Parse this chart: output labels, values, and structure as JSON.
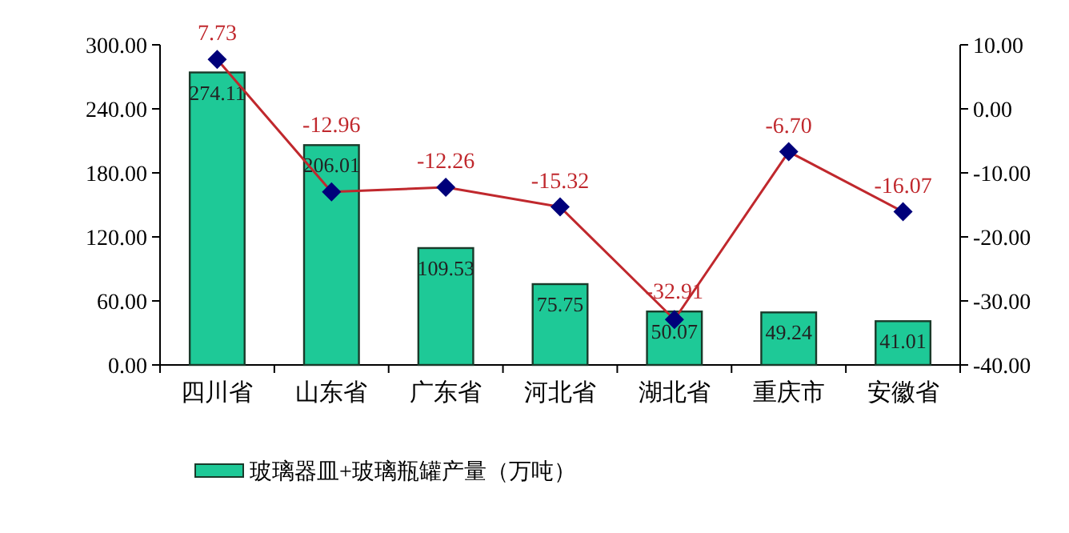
{
  "chart_data": {
    "type": "bar",
    "categories": [
      "四川省",
      "山东省",
      "广东省",
      "河北省",
      "湖北省",
      "重庆市",
      "安徽省"
    ],
    "series": [
      {
        "name": "玻璃器皿+玻璃瓶罐产量（万吨）",
        "color": "#1ec997",
        "values": [
          274.11,
          206.01,
          109.53,
          75.75,
          50.07,
          49.24,
          41.01
        ],
        "value_labels": [
          "274.11",
          "206.01",
          "109.53",
          "75.75",
          "50.07",
          "49.24",
          "41.01"
        ]
      },
      {
        "type": "line",
        "axis": "y2",
        "color": "#c0282d",
        "marker": "diamond",
        "colors": [
          "#00007a",
          "#00007a",
          "#00007a",
          "#00007a",
          "#00007a",
          "#00007a",
          "#00007a"
        ],
        "values": [
          7.73,
          -12.96,
          -12.26,
          -15.32,
          -32.91,
          -6.7,
          -16.07
        ],
        "value_labels": [
          "7.73",
          "-12.96",
          "-12.26",
          "-15.32",
          "-32.91",
          "-6.70",
          "-16.07"
        ]
      }
    ],
    "ylim": [
      0,
      300
    ],
    "yticks": [
      {
        "value": 0,
        "label": "0.00"
      },
      {
        "value": 60,
        "label": "60.00"
      },
      {
        "value": 120,
        "label": "120.00"
      },
      {
        "value": 180,
        "label": "180.00"
      },
      {
        "value": 240,
        "label": "240.00"
      },
      {
        "value": 300,
        "label": "300.00"
      }
    ],
    "y2lim": [
      -40,
      10
    ],
    "y2ticks": [
      {
        "value": -40,
        "label": "-40.00"
      },
      {
        "value": -30,
        "label": "-30.00"
      },
      {
        "value": -20,
        "label": "-20.00"
      },
      {
        "value": -10,
        "label": "-10.00"
      },
      {
        "value": 0,
        "label": "0.00"
      },
      {
        "value": 10,
        "label": "10.00"
      }
    ],
    "legend": "bottom",
    "grid": false
  }
}
